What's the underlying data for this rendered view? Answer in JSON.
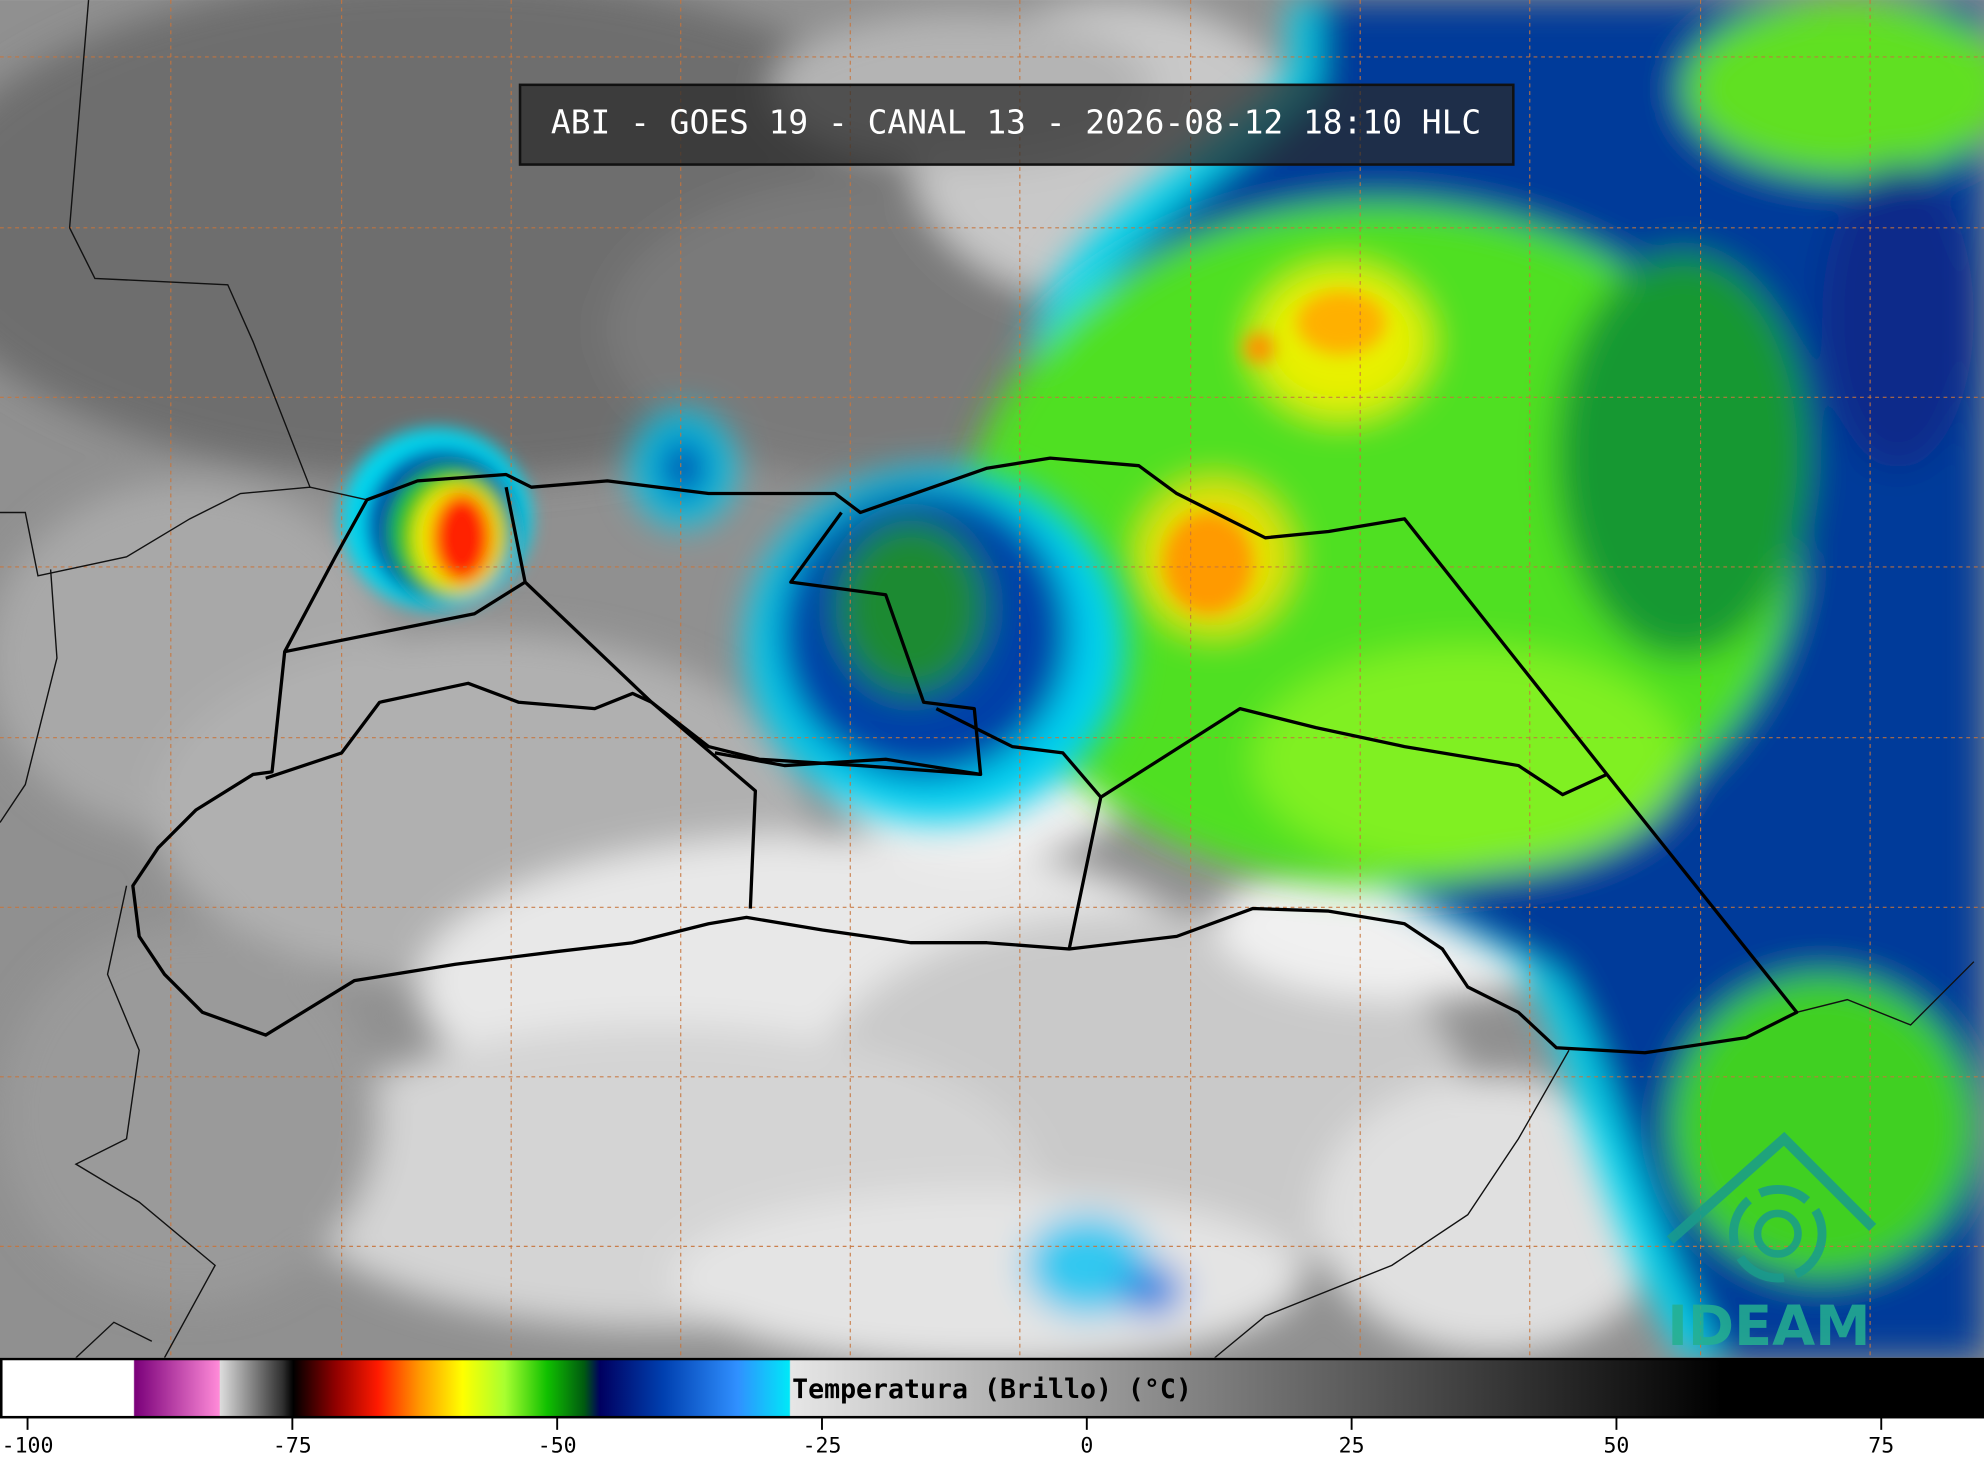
{
  "header": {
    "title": "ABI - GOES 19 - CANAL 13 - 2026-08-12 18:10 HLC"
  },
  "logo": {
    "text": "IDEAM"
  },
  "colorbar": {
    "label": "Temperatura (Brillo) (°C)",
    "lim": [
      -102.6,
      84.7
    ],
    "ticks": [
      -100,
      -75,
      -50,
      -25,
      0,
      25,
      50,
      75
    ],
    "colormap": [
      {
        "value": -102.6,
        "color": "#ffffff"
      },
      {
        "value": -90.1,
        "color": "#ffffff"
      },
      {
        "value": -90,
        "color": "#7a007a"
      },
      {
        "value": -82,
        "color": "#ff8ad8"
      },
      {
        "value": -81.9,
        "color": "#dcdcdc"
      },
      {
        "value": -76,
        "color": "#303030"
      },
      {
        "value": -75,
        "color": "#000000"
      },
      {
        "value": -71,
        "color": "#900000"
      },
      {
        "value": -67,
        "color": "#ff1a00"
      },
      {
        "value": -63,
        "color": "#ff9a00"
      },
      {
        "value": -59,
        "color": "#ffff00"
      },
      {
        "value": -55,
        "color": "#a8ff30"
      },
      {
        "value": -51,
        "color": "#10c000"
      },
      {
        "value": -47.5,
        "color": "#005a10"
      },
      {
        "value": -46,
        "color": "#000060"
      },
      {
        "value": -40,
        "color": "#0040b0"
      },
      {
        "value": -33,
        "color": "#3090ff"
      },
      {
        "value": -28.1,
        "color": "#00e8f8"
      },
      {
        "value": -28,
        "color": "#e6e6e6"
      },
      {
        "value": 60,
        "color": "#000000"
      },
      {
        "value": 84.7,
        "color": "#000000"
      }
    ]
  }
}
